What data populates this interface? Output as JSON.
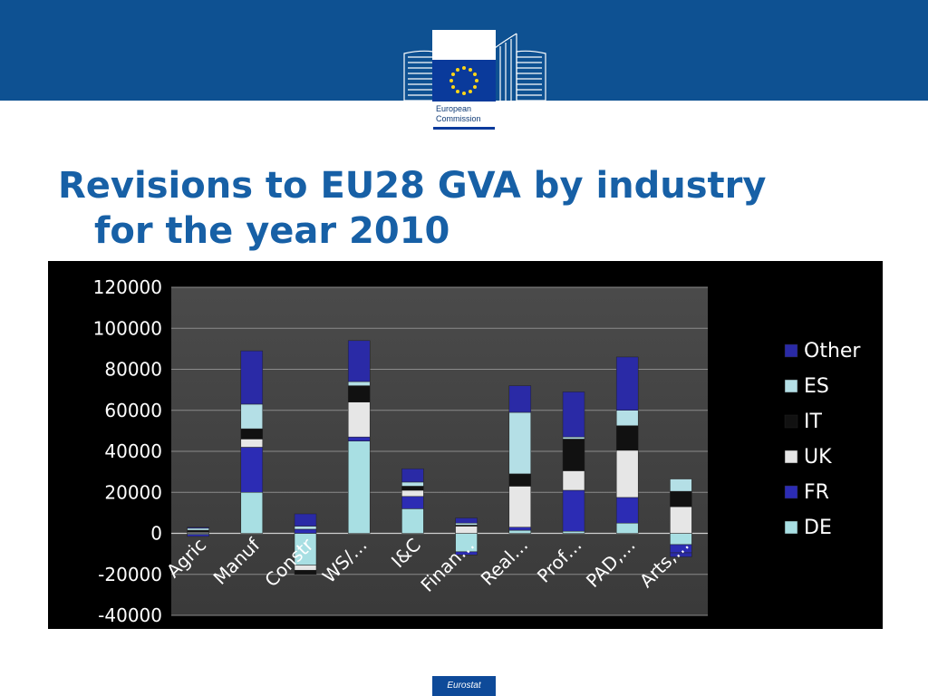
{
  "logo": {
    "line1": "European",
    "line2": "Commission"
  },
  "title": {
    "line1": "Revisions to EU28 GVA by industry",
    "line2": "for the year 2010"
  },
  "footer": {
    "badge": "Eurostat"
  },
  "colors": {
    "header": "#0e5192",
    "title": "#1760a6",
    "chart_bg": "#000000",
    "plot_bg": "#404040"
  },
  "chart_data": {
    "type": "bar",
    "stacked": true,
    "categories": [
      "Agric",
      "Manuf",
      "Constr",
      "WS/…",
      "I&C",
      "Finan…",
      "Real…",
      "Prof…",
      "PAD,…",
      "Arts,…"
    ],
    "ylim": [
      -40000,
      120000
    ],
    "yticks": [
      "120000",
      "100000",
      "80000",
      "60000",
      "40000",
      "20000",
      "0",
      "-20000",
      "-40000"
    ],
    "grid": true,
    "legend_position": "right",
    "series": [
      {
        "name": "DE",
        "color": "#a8dfe3",
        "values": [
          -500,
          20000,
          -15500,
          45000,
          12000,
          -9000,
          1500,
          1000,
          5000,
          -5500
        ]
      },
      {
        "name": "FR",
        "color": "#2c2cb4",
        "values": [
          -1000,
          22000,
          2000,
          2000,
          6000,
          -1500,
          1500,
          20000,
          12500,
          -4000
        ]
      },
      {
        "name": "UK",
        "color": "#e6e6e6",
        "values": [
          500,
          4000,
          -2500,
          17000,
          3000,
          3500,
          20000,
          9500,
          23000,
          13000
        ]
      },
      {
        "name": "IT",
        "color": "#111111",
        "values": [
          1000,
          5000,
          -2000,
          8000,
          2000,
          500,
          6000,
          15500,
          12000,
          7500
        ]
      },
      {
        "name": "ES",
        "color": "#b4dfe6",
        "values": [
          1000,
          12000,
          1500,
          2000,
          2000,
          1000,
          30000,
          1000,
          7500,
          6000
        ]
      },
      {
        "name": "Other",
        "color": "#2a2aa6",
        "values": [
          500,
          26000,
          6000,
          20000,
          6500,
          2500,
          13000,
          22000,
          26000,
          -2000
        ]
      }
    ]
  }
}
